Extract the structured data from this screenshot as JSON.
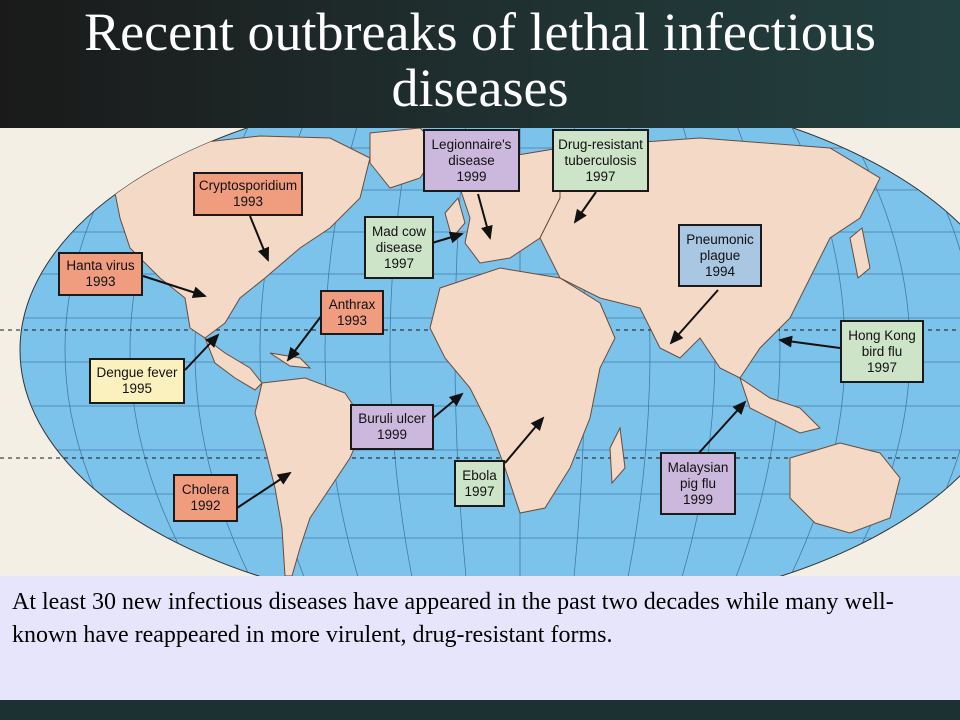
{
  "slide": {
    "title": "Recent outbreaks of lethal infectious diseases",
    "caption": "At least 30 new infectious diseases have appeared in the past two decades while many well-known have reappeared in more virulent, drug-resistant forms."
  },
  "colors": {
    "ocean": "#7cc3ec",
    "land": "#f4d9c6",
    "label_orange": "#ef9c7f",
    "label_purple": "#cdb8dd",
    "label_green": "#cde4c8",
    "label_blue": "#a9c6e2",
    "label_yellow": "#fbf1bf",
    "caption_bg": "#e6e5fb"
  },
  "outbreaks": [
    {
      "id": "legionnaires",
      "name": "Legionnaire's disease",
      "line1": "Legionnaire's",
      "line2": "disease",
      "year": "1999"
    },
    {
      "id": "drug-resistant-tb",
      "name": "Drug-resistant tuberculosis",
      "line1": "Drug-resistant",
      "line2": "tuberculosis",
      "year": "1997"
    },
    {
      "id": "cryptosporidium",
      "name": "Cryptosporidium",
      "line1": "Cryptosporidium",
      "line2": "",
      "year": "1993"
    },
    {
      "id": "mad-cow",
      "name": "Mad cow disease",
      "line1": "Mad cow",
      "line2": "disease",
      "year": "1997"
    },
    {
      "id": "pneumonic-plague",
      "name": "Pneumonic plague",
      "line1": "Pneumonic",
      "line2": "plague",
      "year": "1994"
    },
    {
      "id": "hanta-virus",
      "name": "Hanta virus",
      "line1": "Hanta virus",
      "line2": "",
      "year": "1993"
    },
    {
      "id": "anthrax",
      "name": "Anthrax",
      "line1": "Anthrax",
      "line2": "",
      "year": "1993"
    },
    {
      "id": "hong-kong-bird-flu",
      "name": "Hong Kong bird flu",
      "line1": "Hong Kong",
      "line2": "bird flu",
      "year": "1997"
    },
    {
      "id": "dengue-fever",
      "name": "Dengue fever",
      "line1": "Dengue fever",
      "line2": "",
      "year": "1995"
    },
    {
      "id": "buruli-ulcer",
      "name": "Buruli ulcer",
      "line1": "Buruli ulcer",
      "line2": "",
      "year": "1999"
    },
    {
      "id": "ebola",
      "name": "Ebola",
      "line1": "Ebola",
      "line2": "",
      "year": "1997"
    },
    {
      "id": "malaysian-pig-flu",
      "name": "Malaysian pig flu",
      "line1": "Malaysian",
      "line2": "pig flu",
      "year": "1999"
    },
    {
      "id": "cholera",
      "name": "Cholera",
      "line1": "Cholera",
      "line2": "",
      "year": "1992"
    }
  ]
}
